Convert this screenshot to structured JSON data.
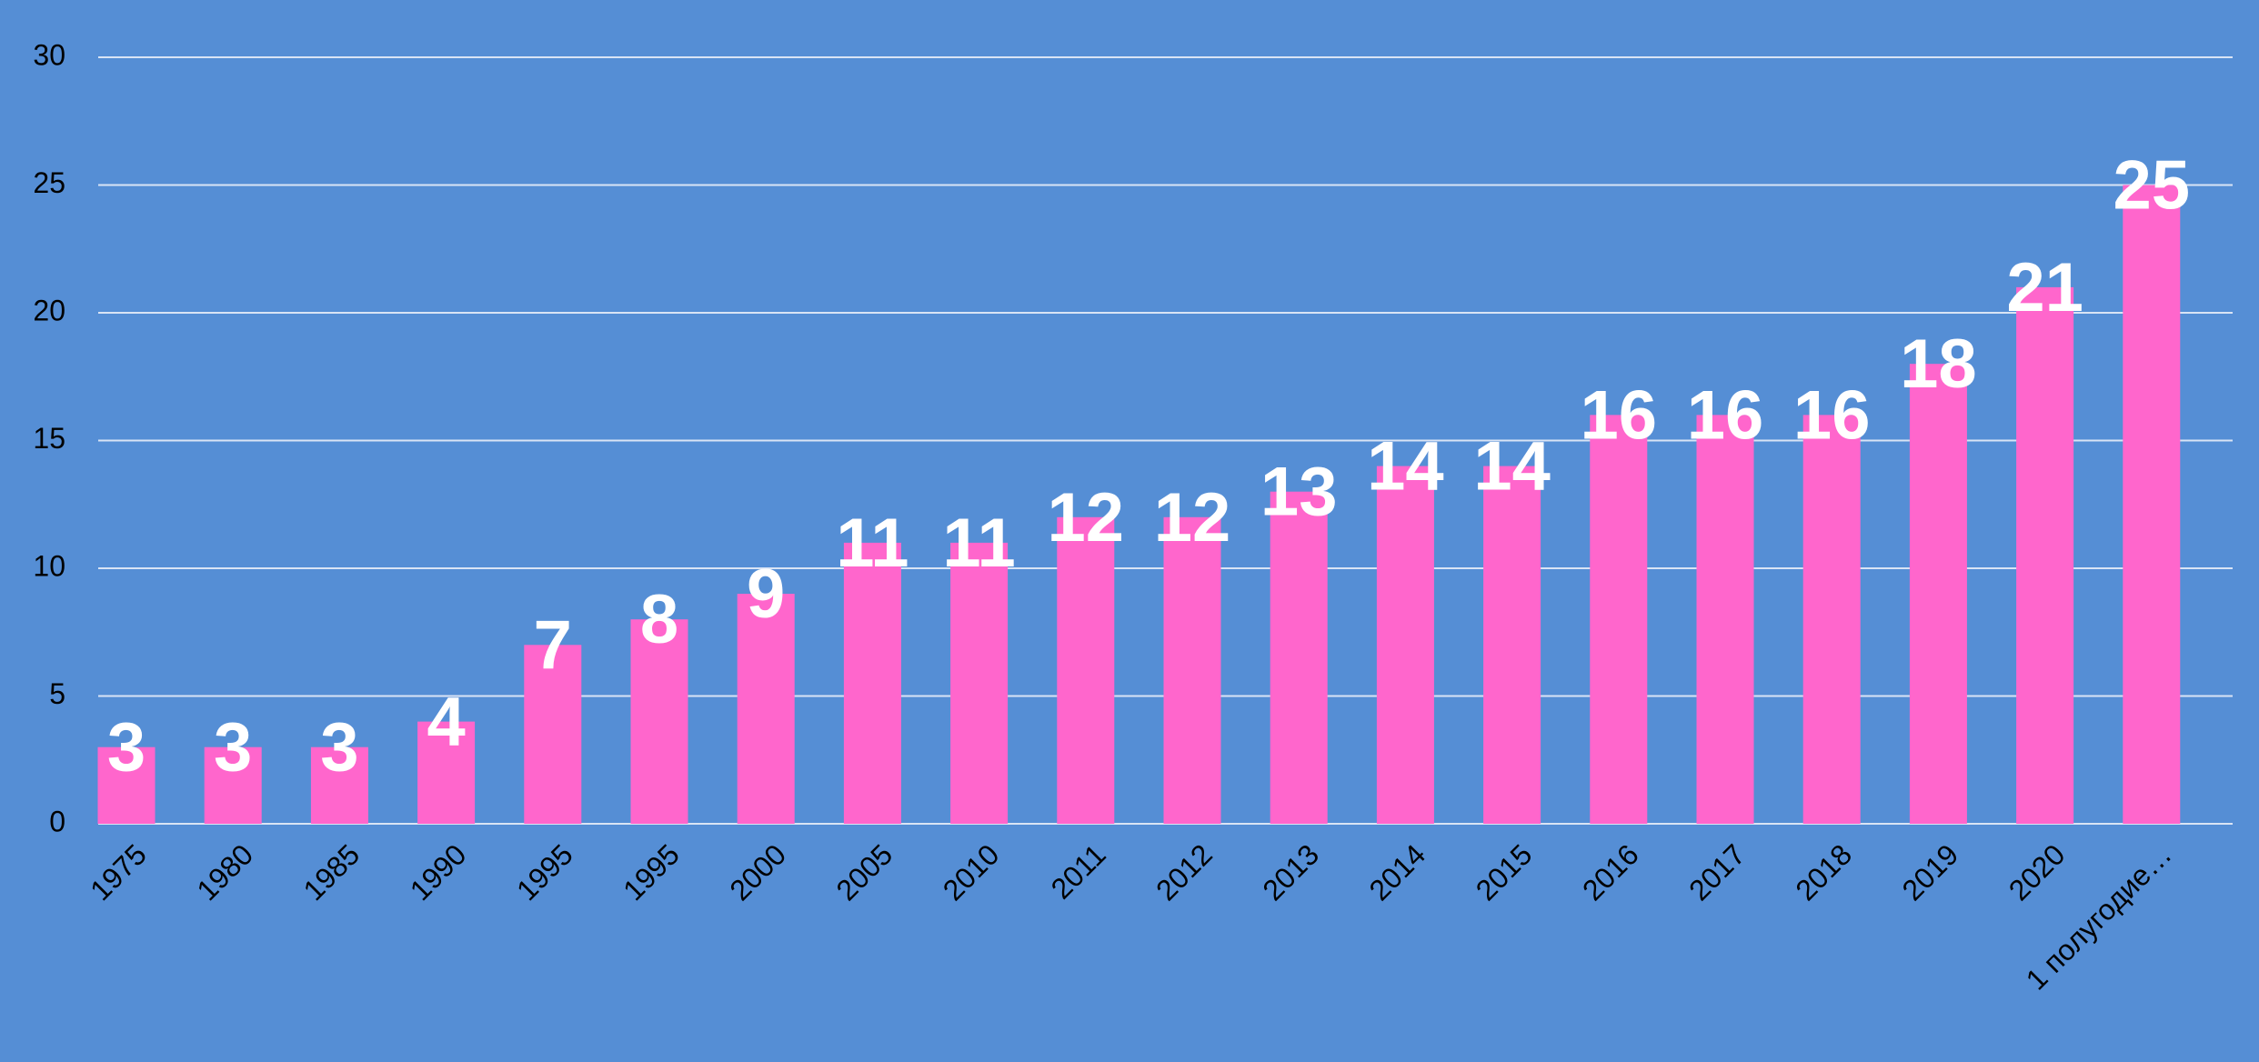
{
  "chart_data": {
    "type": "bar",
    "categories": [
      "1975",
      "1980",
      "1985",
      "1990",
      "1995",
      "1995",
      "2000",
      "2005",
      "2010",
      "2011",
      "2012",
      "2013",
      "2014",
      "2015",
      "2016",
      "2017",
      "2018",
      "2019",
      "2020",
      "1 полугодие…"
    ],
    "values": [
      3,
      3,
      3,
      4,
      7,
      8,
      9,
      11,
      11,
      12,
      12,
      13,
      14,
      14,
      16,
      16,
      16,
      18,
      21,
      25
    ],
    "color": "#ff66cc",
    "ylim": [
      0,
      30
    ],
    "yticks": [
      0,
      5,
      10,
      15,
      20,
      25,
      30
    ],
    "grid": true
  }
}
